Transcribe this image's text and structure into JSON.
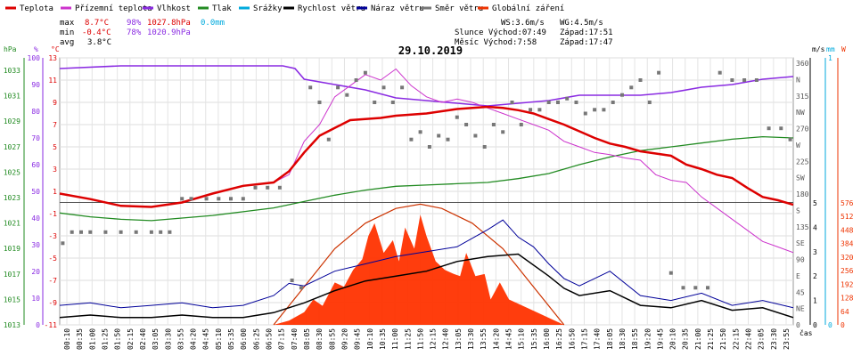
{
  "chart_data": {
    "type": "line",
    "title": "29.10.2019",
    "legend": [
      {
        "label": "Teplota",
        "color": "#dd0000"
      },
      {
        "label": "Přízemní teplota",
        "color": "#cc33cc"
      },
      {
        "label": "Vlhkost",
        "color": "#8a2be2"
      },
      {
        "label": "Tlak",
        "color": "#228b22"
      },
      {
        "label": "Srážky",
        "color": "#00aadd"
      },
      {
        "label": "Rychlost větru",
        "color": "#000000"
      },
      {
        "label": "Náraz větru",
        "color": "#000099"
      },
      {
        "label": "Směr větru",
        "color": "#777777"
      },
      {
        "label": "Globální záření",
        "color": "#ee3300"
      }
    ],
    "stats": {
      "max_label": "max",
      "min_label": "min",
      "avg_label": "avg",
      "max": {
        "temp": "8.7°C",
        "hum": "98%",
        "press": "1027.8hPa",
        "rain": "0.0mm"
      },
      "min": {
        "temp": "-0.4°C",
        "hum": "78%",
        "press": "1020.9hPa"
      },
      "avg": {
        "temp": "3.8°C"
      },
      "ws": "WS:3.6m/s",
      "wg": "WG:4.5m/s",
      "slunce": "Slunce Východ:07:49",
      "slunce_zapad": "Západ:17:51",
      "mesic": "Měsíc  Východ:7:58",
      "mesic_zapad": "Západ:17:47"
    },
    "axes": {
      "hpa_label": "hPa",
      "pct_label": "%",
      "temp_label": "°C",
      "ms_label": "m/s",
      "mm_label": "mm",
      "w_label": "W",
      "x_label": "čas",
      "hpa_ticks": [
        "1033",
        "1031",
        "1029",
        "1027",
        "1025",
        "1023",
        "1021",
        "1019",
        "1017",
        "1015",
        "1013"
      ],
      "pct_ticks": [
        "100",
        "90",
        "80",
        "70",
        "60",
        "50",
        "40",
        "30",
        "20",
        "10",
        "0"
      ],
      "temp_ticks": [
        "13",
        "11",
        "9",
        "7",
        "5",
        "3",
        "1",
        "-1",
        "-3",
        "-5",
        "-7",
        "-9",
        "-11"
      ],
      "dir_ticks": [
        "360",
        "N",
        "315",
        "NW",
        "270",
        "W",
        "225",
        "SW",
        "180",
        "S",
        "135",
        "SE",
        "90",
        "E",
        "45",
        "NE",
        "0"
      ],
      "ms_ticks": [
        "5",
        "4",
        "3",
        "2",
        "1",
        "0"
      ],
      "mm_ticks": [
        "1",
        "0"
      ],
      "w_ticks": [
        "576",
        "512",
        "448",
        "384",
        "320",
        "256",
        "192",
        "128",
        "64",
        "0"
      ],
      "x_ticks": [
        "00:10",
        "00:35",
        "01:00",
        "01:25",
        "01:50",
        "02:15",
        "02:40",
        "03:05",
        "03:30",
        "03:55",
        "04:20",
        "04:45",
        "05:10",
        "05:35",
        "06:00",
        "06:25",
        "06:50",
        "07:15",
        "07:40",
        "08:05",
        "08:30",
        "08:55",
        "09:20",
        "09:45",
        "10:10",
        "10:35",
        "11:00",
        "11:25",
        "11:50",
        "12:15",
        "12:40",
        "13:05",
        "13:30",
        "13:55",
        "14:20",
        "14:45",
        "15:10",
        "15:35",
        "16:00",
        "16:25",
        "16:50",
        "17:15",
        "17:40",
        "18:05",
        "18:30",
        "18:55",
        "19:20",
        "19:45",
        "20:10",
        "20:35",
        "21:00",
        "21:25",
        "21:50",
        "22:15",
        "22:40",
        "23:05",
        "23:30",
        "23:55"
      ]
    },
    "ylim_temp": [
      -11,
      13
    ],
    "ylim_hum": [
      0,
      100
    ],
    "ylim_press": [
      1013,
      1034
    ],
    "ylim_wind": [
      0,
      5
    ],
    "ylim_dir": [
      0,
      360
    ],
    "ylim_rad": [
      0,
      576
    ],
    "temperature": {
      "x": [
        0,
        1,
        2,
        3,
        4,
        5,
        6,
        7,
        7.5,
        8,
        8.5,
        9,
        9.5,
        10,
        10.5,
        11,
        11.5,
        12,
        12.5,
        13,
        13.5,
        14,
        14.5,
        15,
        15.5,
        16,
        16.5,
        17,
        17.5,
        18,
        18.5,
        19,
        19.5,
        20,
        20.5,
        21,
        21.5,
        22,
        22.5,
        23,
        23.5,
        24
      ],
      "y": [
        0.8,
        0.3,
        -0.3,
        -0.4,
        0.0,
        0.8,
        1.5,
        1.8,
        2.8,
        4.5,
        6.0,
        6.7,
        7.4,
        7.5,
        7.6,
        7.8,
        7.9,
        8.0,
        8.2,
        8.4,
        8.5,
        8.6,
        8.5,
        8.3,
        8.0,
        7.5,
        7.0,
        6.4,
        5.8,
        5.3,
        5.0,
        4.6,
        4.4,
        4.2,
        3.4,
        3.0,
        2.5,
        2.2,
        1.3,
        0.5,
        0.2,
        -0.2
      ]
    },
    "ground_temperature": {
      "x": [
        0,
        1,
        2,
        3,
        4,
        5,
        6,
        7,
        7.5,
        8,
        8.5,
        9,
        9.5,
        10,
        10.5,
        11,
        11.5,
        12,
        12.5,
        13,
        13.5,
        14,
        14.5,
        15,
        15.5,
        16,
        16.5,
        17,
        17.5,
        18,
        18.5,
        19,
        19.5,
        20,
        20.5,
        21,
        21.5,
        22,
        22.5,
        23,
        23.5,
        24
      ],
      "y": [
        0.8,
        0.3,
        -0.3,
        -0.4,
        0.0,
        0.8,
        1.5,
        1.8,
        2.5,
        5.5,
        7.0,
        9.5,
        10.5,
        11.5,
        11.0,
        12.0,
        10.5,
        9.5,
        9.0,
        9.3,
        9.0,
        8.5,
        8.0,
        7.5,
        7.0,
        6.5,
        5.5,
        5.0,
        4.5,
        4.3,
        4.0,
        3.8,
        2.5,
        2.0,
        1.8,
        0.5,
        -0.5,
        -1.5,
        -2.5,
        -3.5,
        -4.0,
        -4.5
      ]
    },
    "humidity": {
      "x": [
        0,
        2,
        4,
        6,
        7,
        7.3,
        7.7,
        8,
        9,
        10,
        11,
        12,
        13,
        14,
        15,
        16,
        17,
        18,
        19,
        20,
        21,
        22,
        23,
        24
      ],
      "y": [
        96,
        97,
        97,
        97,
        97,
        97,
        96,
        92,
        90,
        88,
        85,
        84,
        83,
        82,
        83,
        84,
        86,
        86,
        86,
        87,
        89,
        90,
        92,
        93
      ]
    },
    "pressure": {
      "x": [
        0,
        1,
        2,
        3,
        4,
        5,
        6,
        7,
        8,
        9,
        10,
        11,
        12,
        13,
        14,
        15,
        16,
        17,
        18,
        19,
        20,
        21,
        22,
        23,
        24
      ],
      "y": [
        1021.8,
        1021.5,
        1021.3,
        1021.2,
        1021.4,
        1021.6,
        1021.9,
        1022.2,
        1022.7,
        1023.2,
        1023.6,
        1023.9,
        1024.0,
        1024.1,
        1024.2,
        1024.5,
        1024.9,
        1025.6,
        1026.2,
        1026.7,
        1027.0,
        1027.3,
        1027.6,
        1027.8,
        1027.7
      ]
    },
    "precipitation": {
      "total_mm": 0.0
    },
    "wind_speed": {
      "x": [
        0,
        1,
        2,
        3,
        4,
        5,
        6,
        7,
        8,
        9,
        10,
        11,
        12,
        13,
        14,
        15,
        16,
        16.5,
        17,
        18,
        19,
        20,
        21,
        22,
        23,
        24
      ],
      "y": [
        0.3,
        0.4,
        0.3,
        0.3,
        0.4,
        0.3,
        0.3,
        0.5,
        0.9,
        1.4,
        1.8,
        2.0,
        2.2,
        2.6,
        2.8,
        2.9,
        2.0,
        1.5,
        1.2,
        1.4,
        0.8,
        0.7,
        1.0,
        0.6,
        0.7,
        0.3
      ]
    },
    "wind_gust": {
      "x": [
        0,
        1,
        2,
        3,
        4,
        5,
        6,
        7,
        7.5,
        8,
        9,
        10,
        11,
        12,
        13,
        14,
        14.5,
        15,
        15.5,
        16,
        16.5,
        17,
        18,
        19,
        20,
        21,
        22,
        23,
        24
      ],
      "y": [
        0.8,
        0.9,
        0.7,
        0.8,
        0.9,
        0.7,
        0.8,
        1.2,
        1.7,
        1.6,
        2.2,
        2.5,
        2.8,
        3.0,
        3.2,
        3.9,
        4.3,
        3.6,
        3.2,
        2.5,
        1.9,
        1.6,
        2.2,
        1.2,
        1.0,
        1.3,
        0.8,
        1.0,
        0.7
      ]
    },
    "wind_direction": {
      "x": [
        0.1,
        0.4,
        0.7,
        1.0,
        1.5,
        2.0,
        2.5,
        3.0,
        3.3,
        3.6,
        4.0,
        4.3,
        4.8,
        5.2,
        5.6,
        6.0,
        6.4,
        6.8,
        7.2,
        7.6,
        7.9,
        8.2,
        8.5,
        8.8,
        9.1,
        9.4,
        9.7,
        10.0,
        10.3,
        10.6,
        10.9,
        11.2,
        11.5,
        11.8,
        12.1,
        12.4,
        12.7,
        13.0,
        13.3,
        13.6,
        13.9,
        14.2,
        14.5,
        14.8,
        15.1,
        15.4,
        15.7,
        16.0,
        16.3,
        16.6,
        16.9,
        17.2,
        17.5,
        17.8,
        18.1,
        18.4,
        18.7,
        19.0,
        19.3,
        19.6,
        20.0,
        20.4,
        20.8,
        21.2,
        21.6,
        22.0,
        22.4,
        22.8,
        23.2,
        23.6,
        23.9
      ],
      "y": [
        110,
        125,
        125,
        125,
        125,
        125,
        125,
        125,
        125,
        125,
        170,
        170,
        170,
        170,
        170,
        170,
        185,
        185,
        185,
        60,
        50,
        320,
        300,
        250,
        320,
        310,
        330,
        340,
        300,
        320,
        300,
        320,
        250,
        260,
        240,
        255,
        250,
        280,
        270,
        255,
        240,
        270,
        260,
        300,
        270,
        290,
        290,
        300,
        300,
        305,
        300,
        285,
        290,
        290,
        300,
        310,
        320,
        330,
        300,
        340,
        70,
        50,
        50,
        50,
        340,
        330,
        330,
        330,
        265,
        265,
        250
      ]
    },
    "global_radiation": {
      "x": [
        7.0,
        7.5,
        8.0,
        8.3,
        8.6,
        9.0,
        9.3,
        9.6,
        9.9,
        10.1,
        10.3,
        10.6,
        10.9,
        11.1,
        11.3,
        11.6,
        11.8,
        12.0,
        12.3,
        12.6,
        12.9,
        13.1,
        13.3,
        13.6,
        13.9,
        14.1,
        14.4,
        14.7,
        15.0,
        15.3,
        15.6,
        15.9,
        16.2,
        16.5
      ],
      "y": [
        0,
        20,
        60,
        120,
        90,
        200,
        180,
        260,
        310,
        420,
        480,
        340,
        400,
        300,
        460,
        360,
        520,
        420,
        300,
        260,
        240,
        230,
        340,
        230,
        240,
        120,
        200,
        120,
        100,
        80,
        60,
        40,
        20,
        0
      ]
    },
    "clear_sky_radiation": {
      "x": [
        7.0,
        8,
        9,
        10,
        11,
        11.8,
        12.5,
        13.5,
        14.5,
        15.5,
        16.5
      ],
      "y": [
        0,
        180,
        360,
        480,
        550,
        570,
        550,
        480,
        360,
        180,
        0
      ]
    }
  }
}
